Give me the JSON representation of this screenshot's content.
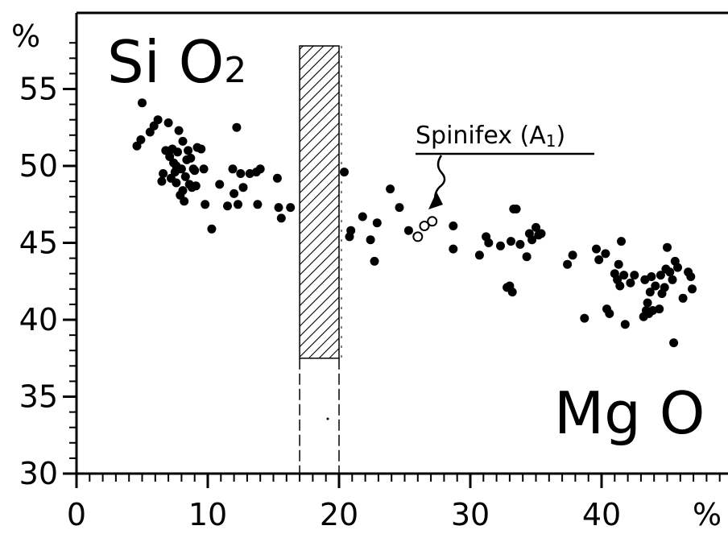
{
  "chart_data": {
    "type": "scatter",
    "title": "",
    "xlabel": "Mg O",
    "ylabel": "Si O2",
    "x_unit": "%",
    "y_unit": "%",
    "xlim": [
      0,
      50
    ],
    "ylim": [
      30,
      59
    ],
    "x_ticks": [
      0,
      10,
      20,
      30,
      40
    ],
    "y_ticks": [
      30,
      35,
      40,
      45,
      50,
      55
    ],
    "grid": false,
    "legend": "none",
    "band": {
      "x_from": 17,
      "x_to": 20,
      "y_from": 37.5,
      "y_to": 57.8
    },
    "annotation": {
      "text": "Spinifex (A",
      "subscript": "1",
      "suffix": ")",
      "target": [
        26.8,
        46.1
      ]
    },
    "series": [
      {
        "marker": "filled",
        "points": [
          [
            5.0,
            54.1
          ],
          [
            4.6,
            51.3
          ],
          [
            4.9,
            51.7
          ],
          [
            5.6,
            52.2
          ],
          [
            5.9,
            52.6
          ],
          [
            6.2,
            53.0
          ],
          [
            6.5,
            49.0
          ],
          [
            6.6,
            49.5
          ],
          [
            6.8,
            51.0
          ],
          [
            7.0,
            52.8
          ],
          [
            7.1,
            50.6
          ],
          [
            7.2,
            49.2
          ],
          [
            7.3,
            51.1
          ],
          [
            7.4,
            50.2
          ],
          [
            7.5,
            49.6
          ],
          [
            7.6,
            48.9
          ],
          [
            7.7,
            50.9
          ],
          [
            7.8,
            52.3
          ],
          [
            7.9,
            48.1
          ],
          [
            8.0,
            49.8
          ],
          [
            8.1,
            51.6
          ],
          [
            8.2,
            47.7
          ],
          [
            8.3,
            49.3
          ],
          [
            8.4,
            50.4
          ],
          [
            8.5,
            51.0
          ],
          [
            8.6,
            48.8
          ],
          [
            8.7,
            50.5
          ],
          [
            8.8,
            48.6
          ],
          [
            8.9,
            49.8
          ],
          [
            9.0,
            49.7
          ],
          [
            9.1,
            48.7
          ],
          [
            9.2,
            51.2
          ],
          [
            9.5,
            51.1
          ],
          [
            9.7,
            49.8
          ],
          [
            9.8,
            47.5
          ],
          [
            8.1,
            48.4
          ],
          [
            7.6,
            50.0
          ],
          [
            10.3,
            45.9
          ],
          [
            10.9,
            48.8
          ],
          [
            11.5,
            47.4
          ],
          [
            11.9,
            49.8
          ],
          [
            12.0,
            48.2
          ],
          [
            12.2,
            52.5
          ],
          [
            12.3,
            47.5
          ],
          [
            12.5,
            49.5
          ],
          [
            12.7,
            48.6
          ],
          [
            13.2,
            49.5
          ],
          [
            13.7,
            49.6
          ],
          [
            13.8,
            47.5
          ],
          [
            14.0,
            49.8
          ],
          [
            15.3,
            49.2
          ],
          [
            15.4,
            47.3
          ],
          [
            15.6,
            46.6
          ],
          [
            16.3,
            47.3
          ],
          [
            20.4,
            49.6
          ],
          [
            20.8,
            45.4
          ],
          [
            20.9,
            45.8
          ],
          [
            21.8,
            46.7
          ],
          [
            22.4,
            45.2
          ],
          [
            22.7,
            43.8
          ],
          [
            22.9,
            46.3
          ],
          [
            23.9,
            48.5
          ],
          [
            24.6,
            47.3
          ],
          [
            25.3,
            45.8
          ],
          [
            28.7,
            46.1
          ],
          [
            28.7,
            44.6
          ],
          [
            30.7,
            44.2
          ],
          [
            31.2,
            45.4
          ],
          [
            31.4,
            45.0
          ],
          [
            32.3,
            44.8
          ],
          [
            32.8,
            42.1
          ],
          [
            33.0,
            42.2
          ],
          [
            33.2,
            41.8
          ],
          [
            33.1,
            45.1
          ],
          [
            33.3,
            47.2
          ],
          [
            33.5,
            47.2
          ],
          [
            33.8,
            44.9
          ],
          [
            34.3,
            44.1
          ],
          [
            34.5,
            45.6
          ],
          [
            34.7,
            45.2
          ],
          [
            35.0,
            46.0
          ],
          [
            35.2,
            45.5
          ],
          [
            35.4,
            45.6
          ],
          [
            37.4,
            43.6
          ],
          [
            37.8,
            44.2
          ],
          [
            38.7,
            40.1
          ],
          [
            39.6,
            44.6
          ],
          [
            39.8,
            43.9
          ],
          [
            40.3,
            44.3
          ],
          [
            40.4,
            40.7
          ],
          [
            40.6,
            40.4
          ],
          [
            41.0,
            43.0
          ],
          [
            41.2,
            42.6
          ],
          [
            41.3,
            43.6
          ],
          [
            41.4,
            42.2
          ],
          [
            41.5,
            45.1
          ],
          [
            41.7,
            42.9
          ],
          [
            41.8,
            39.7
          ],
          [
            42.2,
            42.4
          ],
          [
            42.5,
            42.9
          ],
          [
            43.2,
            40.2
          ],
          [
            43.3,
            42.6
          ],
          [
            43.4,
            40.6
          ],
          [
            43.5,
            41.1
          ],
          [
            43.6,
            40.4
          ],
          [
            43.7,
            41.8
          ],
          [
            43.8,
            42.8
          ],
          [
            43.9,
            40.6
          ],
          [
            44.1,
            42.2
          ],
          [
            44.4,
            40.7
          ],
          [
            44.5,
            42.9
          ],
          [
            44.6,
            41.7
          ],
          [
            44.8,
            42.1
          ],
          [
            44.9,
            43.3
          ],
          [
            45.0,
            44.7
          ],
          [
            45.2,
            43.1
          ],
          [
            45.4,
            42.6
          ],
          [
            45.6,
            43.8
          ],
          [
            45.5,
            38.5
          ],
          [
            45.8,
            43.4
          ],
          [
            46.2,
            41.4
          ],
          [
            46.6,
            43.1
          ],
          [
            46.8,
            42.8
          ],
          [
            46.9,
            42.0
          ]
        ]
      },
      {
        "marker": "open",
        "points": [
          [
            26.0,
            45.4
          ],
          [
            26.5,
            46.1
          ],
          [
            27.1,
            46.4
          ]
        ]
      }
    ]
  }
}
